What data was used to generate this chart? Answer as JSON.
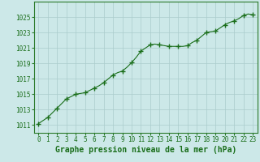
{
  "title": "Graphe pression niveau de la mer (hPa)",
  "x_values": [
    0,
    0.5,
    1,
    1.5,
    2,
    2.5,
    3,
    3.5,
    4,
    4.5,
    5,
    5.5,
    6,
    6.5,
    7,
    7.5,
    8,
    8.5,
    9,
    9.5,
    10,
    10.5,
    11,
    11.5,
    12,
    12.5,
    13,
    13.5,
    14,
    14.5,
    15,
    15.5,
    16,
    16.5,
    17,
    17.5,
    18,
    18.5,
    19,
    19.5,
    20,
    20.5,
    21,
    21.5,
    22,
    22.5,
    23
  ],
  "y_values": [
    1011.2,
    1011.6,
    1012.0,
    1012.6,
    1013.2,
    1013.8,
    1014.4,
    1014.7,
    1015.0,
    1015.1,
    1015.2,
    1015.5,
    1015.8,
    1016.1,
    1016.5,
    1017.0,
    1017.5,
    1017.8,
    1018.0,
    1018.5,
    1019.1,
    1019.8,
    1020.6,
    1021.0,
    1021.4,
    1021.5,
    1021.4,
    1021.3,
    1021.2,
    1021.2,
    1021.2,
    1021.2,
    1021.3,
    1021.7,
    1022.0,
    1022.5,
    1023.0,
    1023.1,
    1023.2,
    1023.6,
    1024.0,
    1024.3,
    1024.5,
    1024.8,
    1025.2,
    1025.4,
    1025.3
  ],
  "marker_x": [
    0,
    1,
    2,
    3,
    4,
    5,
    6,
    7,
    8,
    9,
    10,
    11,
    12,
    13,
    14,
    15,
    16,
    17,
    18,
    19,
    20,
    21,
    22,
    23
  ],
  "marker_y": [
    1011.2,
    1012.0,
    1013.2,
    1014.4,
    1015.0,
    1015.2,
    1015.8,
    1016.5,
    1017.5,
    1018.0,
    1019.1,
    1020.6,
    1021.4,
    1021.4,
    1021.2,
    1021.2,
    1021.3,
    1022.0,
    1023.0,
    1023.2,
    1024.0,
    1024.5,
    1025.2,
    1025.3
  ],
  "line_color": "#1a6e1a",
  "marker": "+",
  "marker_size": 4,
  "linewidth": 0.8,
  "background_color": "#cce8e8",
  "grid_color": "#aacccc",
  "ylim": [
    1010,
    1027
  ],
  "xlim": [
    -0.5,
    23.5
  ],
  "yticks": [
    1011,
    1013,
    1015,
    1017,
    1019,
    1021,
    1023,
    1025
  ],
  "xticks": [
    0,
    1,
    2,
    3,
    4,
    5,
    6,
    7,
    8,
    9,
    10,
    11,
    12,
    13,
    14,
    15,
    16,
    17,
    18,
    19,
    20,
    21,
    22,
    23
  ],
  "title_color": "#1a6e1a",
  "title_fontsize": 7,
  "tick_fontsize": 5.5,
  "tick_color": "#1a6e1a",
  "spine_color": "#2a7a2a"
}
